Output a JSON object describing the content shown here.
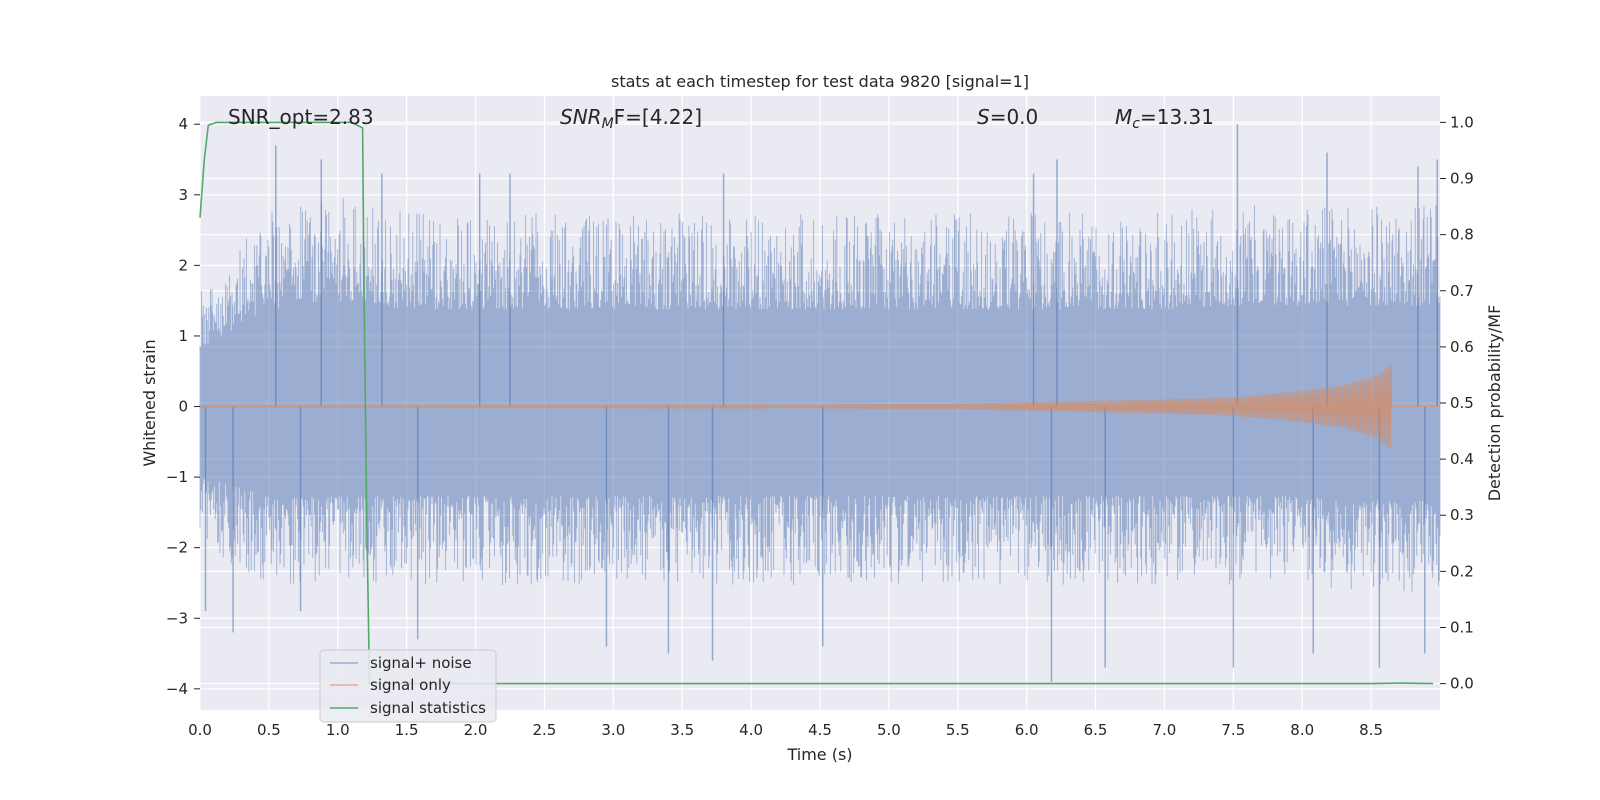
{
  "chart_data": {
    "type": "line",
    "title": "stats at each timestep for test data 9820 [signal=1]",
    "xlabel": "Time (s)",
    "ylabel": "Whitened strain",
    "y2label": "Detection probability/MF",
    "xlim": [
      0.0,
      9.0
    ],
    "ylim": [
      -4.3,
      4.4
    ],
    "y2lim": [
      -0.047,
      1.047
    ],
    "xticks": [
      "0.0",
      "0.5",
      "1.0",
      "1.5",
      "2.0",
      "2.5",
      "3.0",
      "3.5",
      "4.0",
      "4.5",
      "5.0",
      "5.5",
      "6.0",
      "6.5",
      "7.0",
      "7.5",
      "8.0",
      "8.5"
    ],
    "yticks": [
      "4",
      "3",
      "2",
      "1",
      "0",
      "−1",
      "−2",
      "−3",
      "−4"
    ],
    "y2ticks": [
      "1.0",
      "0.9",
      "0.8",
      "0.7",
      "0.6",
      "0.5",
      "0.4",
      "0.3",
      "0.2",
      "0.1",
      "0.0"
    ],
    "grid": true,
    "legend_position": "lower-left",
    "annotations": {
      "snr_opt": "SNR_opt=2.83",
      "snr_mf_main": "SNR",
      "snr_mf_sub": "M",
      "snr_mf_rest": "F=[4.22]",
      "s_main": "S",
      "s_rest": "=0.0",
      "mc_main": "M",
      "mc_sub": "c",
      "mc_rest": "=13.31"
    },
    "series": [
      {
        "name": "signal+ noise",
        "color": "#4c72b0",
        "axis": "left",
        "description": "whitened strain noise band, approx. uniform amplitude",
        "envelope_upper": [
          [
            0.0,
            1.5
          ],
          [
            0.5,
            2.5
          ],
          [
            1.0,
            2.7
          ],
          [
            1.5,
            2.5
          ],
          [
            2.0,
            2.5
          ],
          [
            2.5,
            2.5
          ],
          [
            3.0,
            2.5
          ],
          [
            3.5,
            2.5
          ],
          [
            4.0,
            2.5
          ],
          [
            4.5,
            2.5
          ],
          [
            5.0,
            2.5
          ],
          [
            5.5,
            2.5
          ],
          [
            6.0,
            2.5
          ],
          [
            6.5,
            2.5
          ],
          [
            7.0,
            2.5
          ],
          [
            7.5,
            2.6
          ],
          [
            8.0,
            2.6
          ],
          [
            8.5,
            2.6
          ],
          [
            9.0,
            2.6
          ]
        ],
        "envelope_lower": [
          [
            0.0,
            -1.8
          ],
          [
            0.5,
            -2.3
          ],
          [
            1.0,
            -2.3
          ],
          [
            1.5,
            -2.3
          ],
          [
            2.0,
            -2.3
          ],
          [
            2.5,
            -2.3
          ],
          [
            3.0,
            -2.3
          ],
          [
            3.5,
            -2.3
          ],
          [
            4.0,
            -2.3
          ],
          [
            4.5,
            -2.3
          ],
          [
            5.0,
            -2.3
          ],
          [
            5.5,
            -2.3
          ],
          [
            6.0,
            -2.3
          ],
          [
            6.5,
            -2.3
          ],
          [
            7.0,
            -2.3
          ],
          [
            7.5,
            -2.3
          ],
          [
            8.0,
            -2.3
          ],
          [
            8.5,
            -2.4
          ],
          [
            9.0,
            -2.4
          ]
        ],
        "peaks": [
          [
            0.55,
            3.7
          ],
          [
            0.88,
            3.5
          ],
          [
            1.32,
            3.3
          ],
          [
            2.03,
            3.3
          ],
          [
            2.25,
            3.3
          ],
          [
            3.8,
            3.3
          ],
          [
            6.05,
            3.3
          ],
          [
            6.22,
            3.5
          ],
          [
            7.53,
            4.0
          ],
          [
            8.18,
            3.6
          ],
          [
            8.84,
            3.4
          ],
          [
            8.98,
            3.5
          ]
        ],
        "troughs": [
          [
            0.04,
            -2.9
          ],
          [
            0.24,
            -3.2
          ],
          [
            0.73,
            -2.9
          ],
          [
            1.58,
            -3.3
          ],
          [
            2.95,
            -3.4
          ],
          [
            3.4,
            -3.5
          ],
          [
            3.72,
            -3.6
          ],
          [
            4.52,
            -3.4
          ],
          [
            6.18,
            -3.9
          ],
          [
            6.57,
            -3.7
          ],
          [
            7.5,
            -3.7
          ],
          [
            8.08,
            -3.5
          ],
          [
            8.56,
            -3.7
          ],
          [
            8.89,
            -3.5
          ]
        ]
      },
      {
        "name": "signal only",
        "color": "#dd8452",
        "axis": "left",
        "description": "chirp waveform growing in amplitude until merger",
        "chirp_amplitude": [
          [
            0.0,
            0.01
          ],
          [
            4.0,
            0.02
          ],
          [
            5.5,
            0.04
          ],
          [
            7.0,
            0.1
          ],
          [
            7.5,
            0.13
          ],
          [
            8.0,
            0.22
          ],
          [
            8.3,
            0.3
          ],
          [
            8.55,
            0.45
          ],
          [
            8.65,
            0.6
          ],
          [
            8.67,
            0.0
          ]
        ]
      },
      {
        "name": "signal statistics",
        "color": "#55a868",
        "axis": "right",
        "values": [
          [
            0.0,
            0.83
          ],
          [
            0.03,
            0.93
          ],
          [
            0.06,
            0.995
          ],
          [
            0.12,
            1.0
          ],
          [
            1.1,
            1.0
          ],
          [
            1.18,
            0.99
          ],
          [
            1.19,
            0.7
          ],
          [
            1.21,
            0.3
          ],
          [
            1.23,
            0.0
          ],
          [
            1.25,
            0.0
          ],
          [
            8.5,
            0.0
          ],
          [
            8.7,
            0.001
          ],
          [
            8.95,
            0.0
          ]
        ]
      }
    ]
  }
}
